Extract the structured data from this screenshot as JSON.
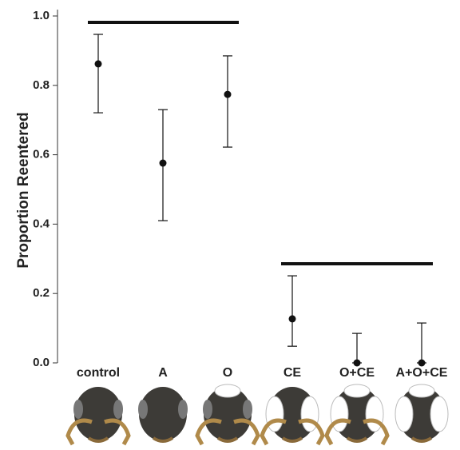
{
  "chart_data": {
    "type": "errorbar",
    "y_label": "Proportion Reentered",
    "categories": [
      "control",
      "A",
      "O",
      "CE",
      "O+CE",
      "A+O+CE"
    ],
    "values": [
      0.862,
      0.576,
      0.774,
      0.127,
      0,
      0
    ],
    "ci_low": [
      0.721,
      0.41,
      0.622,
      0.048,
      0,
      0
    ],
    "ci_high": [
      0.947,
      0.73,
      0.885,
      0.251,
      0.085,
      0.115
    ],
    "color": "#111111",
    "ylim": [
      0,
      1
    ],
    "yticks": [
      {
        "value": 0,
        "label": "0.0"
      },
      0.2,
      0.4,
      0.6,
      0.8,
      {
        "value": 1,
        "label": "1.0"
      }
    ]
  }
}
